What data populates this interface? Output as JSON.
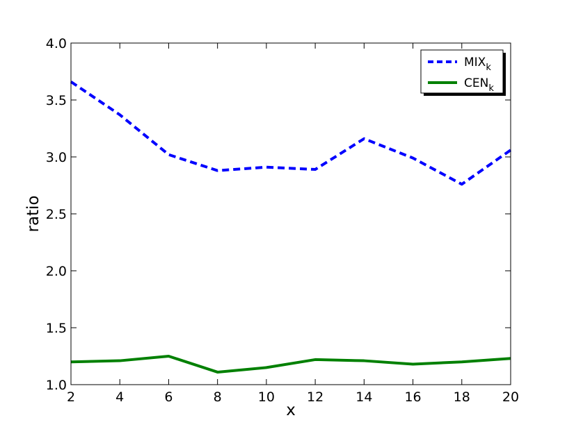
{
  "chart_data": {
    "type": "line",
    "title": "",
    "xlabel": "x",
    "ylabel": "ratio",
    "xlim": [
      2,
      20
    ],
    "ylim": [
      1.0,
      4.0
    ],
    "x_ticks": [
      "2",
      "4",
      "6",
      "8",
      "10",
      "12",
      "14",
      "16",
      "18",
      "20"
    ],
    "y_ticks": [
      "1.0",
      "1.5",
      "2.0",
      "2.5",
      "3.0",
      "3.5",
      "4.0"
    ],
    "grid": false,
    "legend_position": "top-right",
    "x": [
      2,
      4,
      6,
      8,
      10,
      12,
      14,
      16,
      18,
      20
    ],
    "series": [
      {
        "name": "MIX",
        "name_subscript": "k",
        "color": "#0000ff",
        "line_style": "dashed",
        "values": [
          3.66,
          3.37,
          3.02,
          2.88,
          2.91,
          2.89,
          3.16,
          2.99,
          2.76,
          3.06
        ]
      },
      {
        "name": "CEN",
        "name_subscript": "k",
        "color": "#008000",
        "line_style": "solid",
        "values": [
          1.2,
          1.21,
          1.25,
          1.11,
          1.15,
          1.22,
          1.21,
          1.18,
          1.2,
          1.23
        ]
      }
    ]
  }
}
